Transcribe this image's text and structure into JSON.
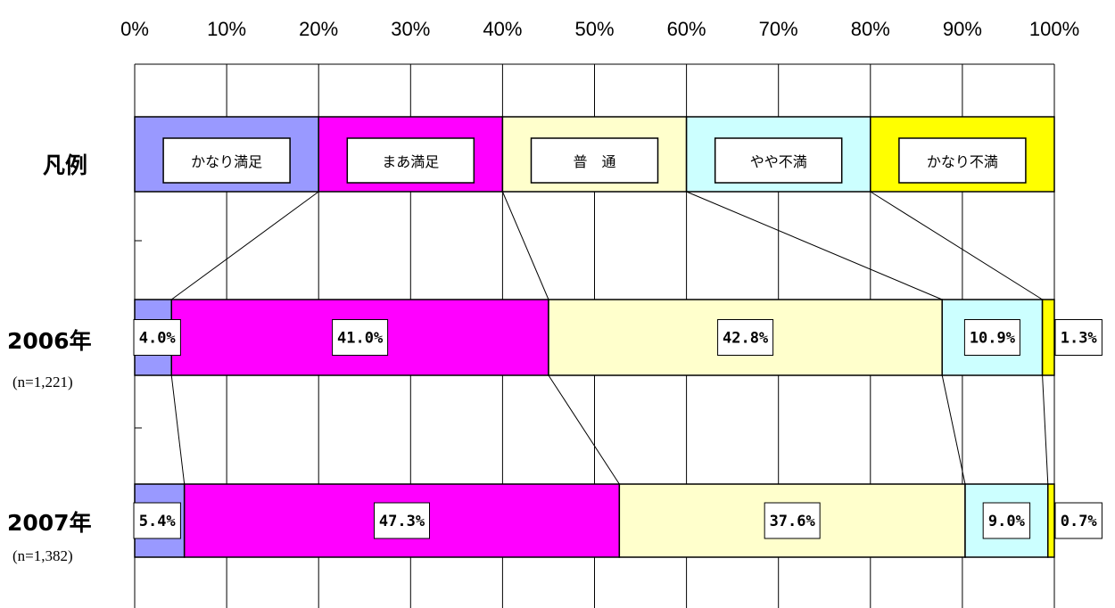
{
  "chart_data": {
    "type": "bar",
    "stacked": true,
    "orientation": "horizontal",
    "x_ticks": [
      "0%",
      "10%",
      "20%",
      "30%",
      "40%",
      "50%",
      "60%",
      "70%",
      "80%",
      "90%",
      "100%"
    ],
    "xlim": [
      0,
      100
    ],
    "grid": true,
    "legend_row": {
      "label": "凡例",
      "segments": [
        {
          "name": "かなり満足",
          "value": 20
        },
        {
          "name": "まあ満足",
          "value": 20
        },
        {
          "name": "普　通",
          "value": 20
        },
        {
          "name": "やや不満",
          "value": 20
        },
        {
          "name": "かなり不満",
          "value": 20
        }
      ]
    },
    "categories": [
      {
        "label": "2006年",
        "n": "(n=1,221)"
      },
      {
        "label": "2007年",
        "n": "(n=1,382)"
      }
    ],
    "series": [
      {
        "name": "かなり満足",
        "color": "#9999ff",
        "values": [
          4.0,
          5.4
        ],
        "labels": [
          "4.0%",
          "5.4%"
        ]
      },
      {
        "name": "まあ満足",
        "color": "#ff00ff",
        "values": [
          41.0,
          47.3
        ],
        "labels": [
          "41.0%",
          "47.3%"
        ]
      },
      {
        "name": "普　通",
        "color": "#ffffcc",
        "values": [
          42.8,
          37.6
        ],
        "labels": [
          "42.8%",
          "37.6%"
        ]
      },
      {
        "name": "やや不満",
        "color": "#ccffff",
        "values": [
          10.9,
          9.0
        ],
        "labels": [
          "10.9%",
          "9.0%"
        ]
      },
      {
        "name": "かなり不満",
        "color": "#ffff00",
        "values": [
          1.3,
          0.7
        ],
        "labels": [
          "1.3%",
          "0.7%"
        ]
      }
    ]
  }
}
